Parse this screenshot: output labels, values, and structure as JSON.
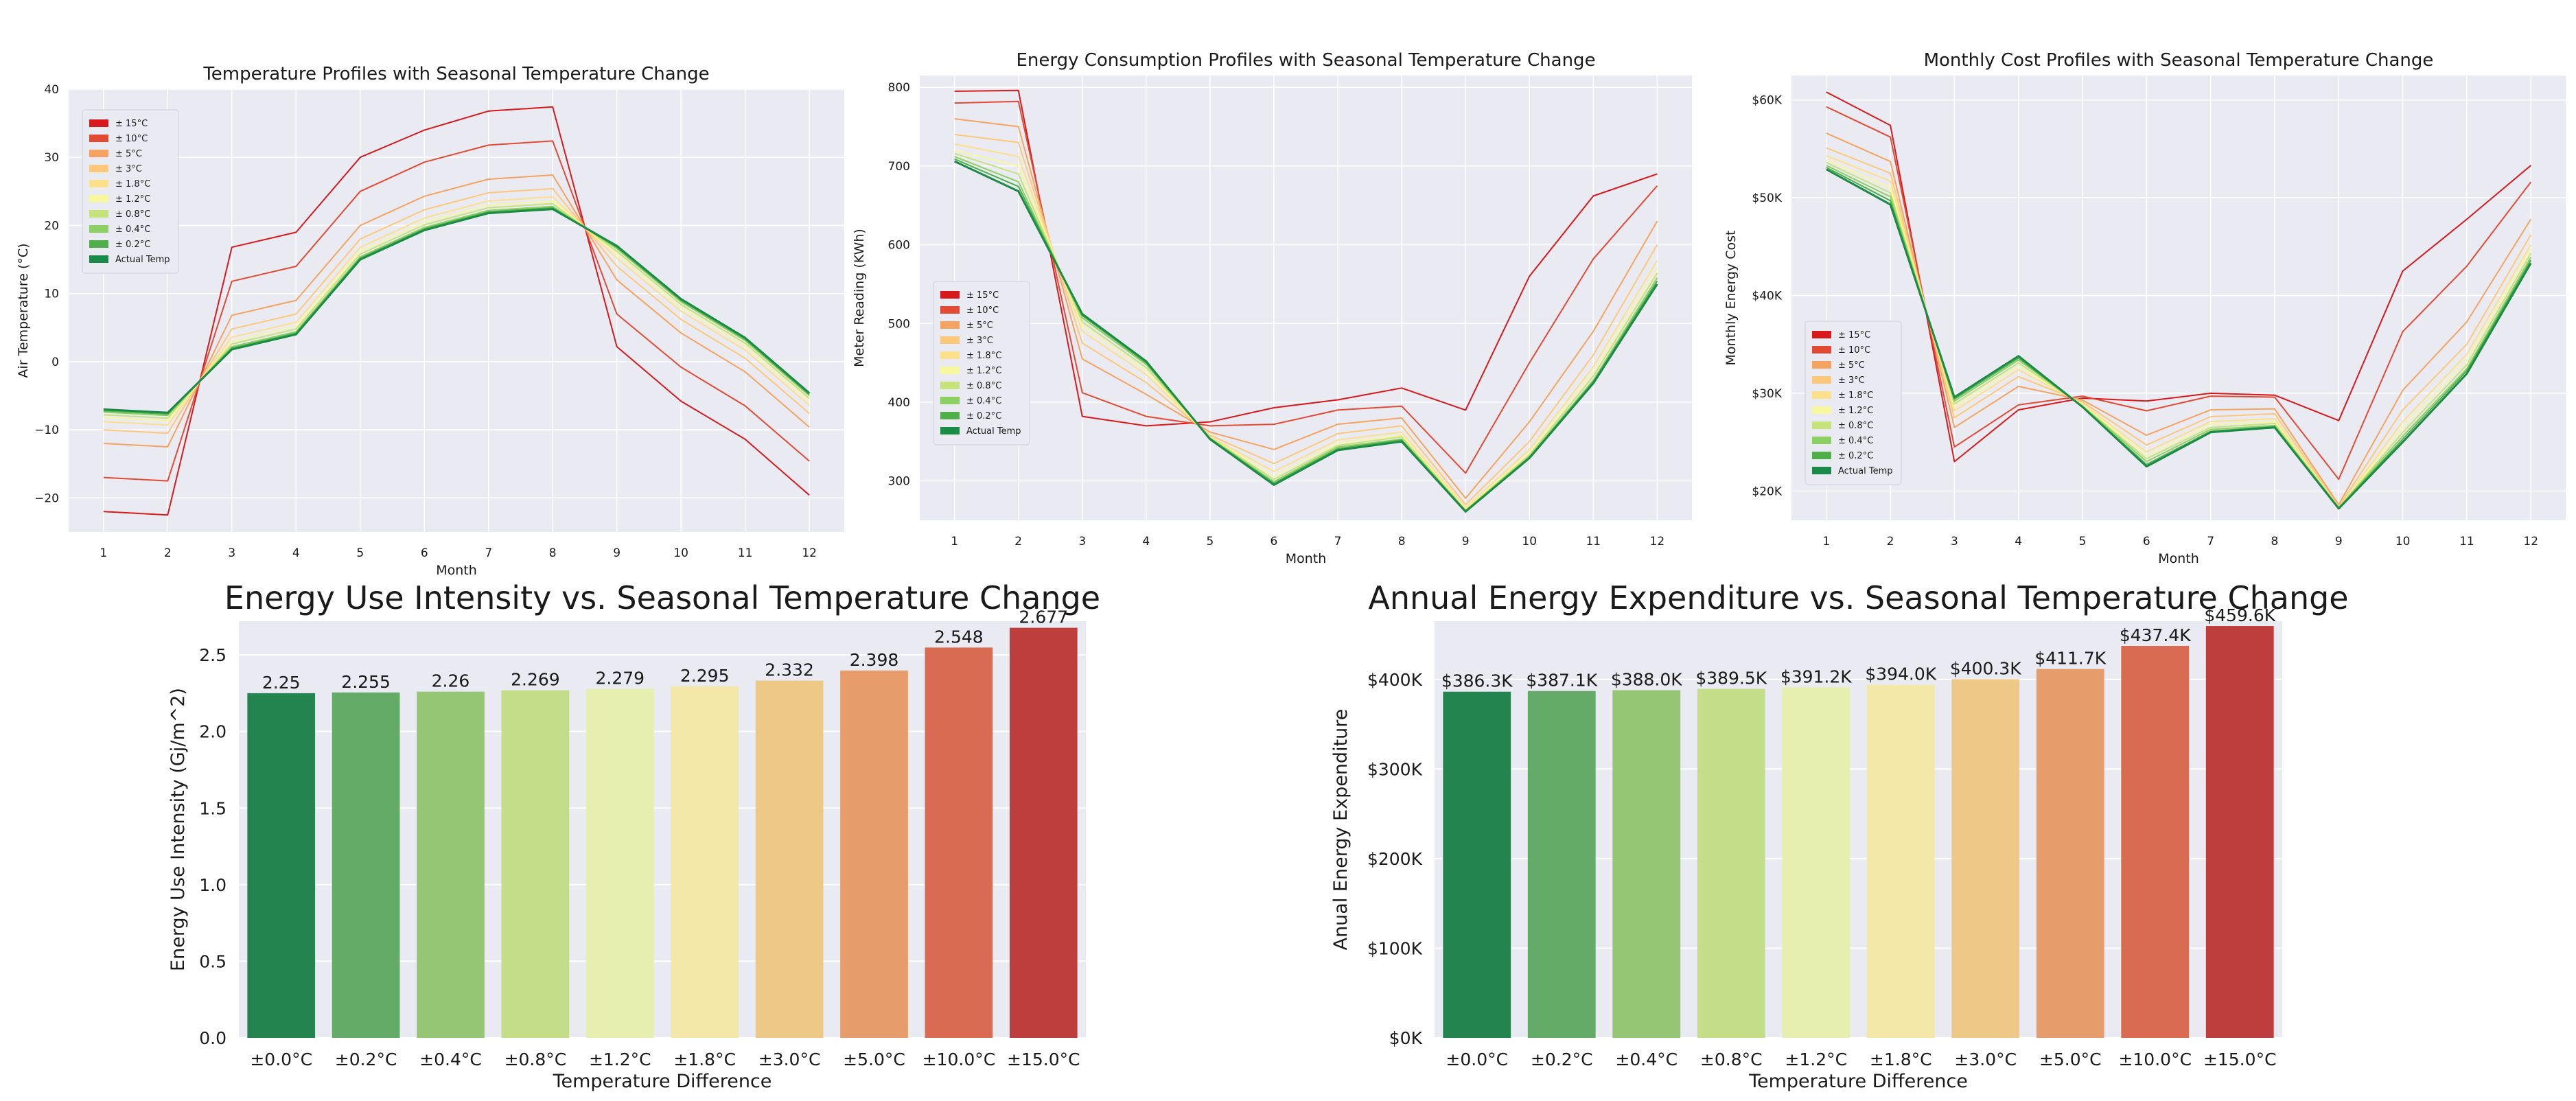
{
  "chart_data": [
    {
      "type": "line",
      "title": "Temperature Profiles with Seasonal Temperature Change",
      "xlabel": "Month",
      "ylabel": "Air Temperature (°C)",
      "x": [
        1,
        2,
        3,
        4,
        5,
        6,
        7,
        8,
        9,
        10,
        11,
        12
      ],
      "xticks": [
        "1",
        "2",
        "3",
        "4",
        "5",
        "6",
        "7",
        "8",
        "9",
        "10",
        "11",
        "12"
      ],
      "ylim": [
        -25,
        40
      ],
      "yticks": [
        -20,
        -10,
        0,
        10,
        20,
        30,
        40
      ],
      "ytick_labels": [
        "−20",
        "−10",
        "0",
        "10",
        "20",
        "30",
        "40"
      ],
      "grid": true,
      "legend_position": "upper-left",
      "series": [
        {
          "name": "± 15°C",
          "color": "#d7191c",
          "values": [
            -22,
            -22.5,
            16.8,
            19,
            30,
            34,
            36.8,
            37.4,
            2.2,
            -5.8,
            -11.4,
            -19.6
          ]
        },
        {
          "name": "± 10°C",
          "color": "#e34a33",
          "values": [
            -17,
            -17.5,
            11.8,
            14,
            25,
            29.3,
            31.8,
            32.4,
            7,
            -0.8,
            -6.5,
            -14.6
          ]
        },
        {
          "name": "± 5°C",
          "color": "#f4a460",
          "values": [
            -12,
            -12.5,
            6.8,
            9,
            20,
            24.3,
            26.8,
            27.4,
            12,
            4.2,
            -1.5,
            -9.6
          ]
        },
        {
          "name": "± 3°C",
          "color": "#fdc87a",
          "values": [
            -10,
            -10.5,
            4.8,
            7,
            18,
            22.3,
            24.8,
            25.4,
            14,
            6.2,
            0.5,
            -7.6
          ]
        },
        {
          "name": "± 1.8°C",
          "color": "#fee08b",
          "values": [
            -8.8,
            -9.3,
            3.6,
            5.8,
            16.8,
            21.1,
            23.6,
            24.2,
            15.2,
            7.4,
            1.7,
            -6.4
          ]
        },
        {
          "name": "± 1.2°C",
          "color": "#f7f7a0",
          "values": [
            -8.2,
            -8.7,
            3,
            5.2,
            16.2,
            20.5,
            23,
            23.6,
            15.8,
            8,
            2.3,
            -5.8
          ]
        },
        {
          "name": "± 0.8°C",
          "color": "#c6e27a",
          "values": [
            -7.8,
            -8.3,
            2.6,
            4.8,
            15.8,
            20.1,
            22.6,
            23.2,
            16.2,
            8.4,
            2.7,
            -5.4
          ]
        },
        {
          "name": "± 0.4°C",
          "color": "#8ccf63",
          "values": [
            -7.4,
            -7.9,
            2.2,
            4.4,
            15.4,
            19.7,
            22.2,
            22.8,
            16.6,
            8.8,
            3.1,
            -5
          ]
        },
        {
          "name": "± 0.2°C",
          "color": "#4fb04a",
          "values": [
            -7.2,
            -7.7,
            2,
            4.2,
            15.2,
            19.5,
            22,
            22.6,
            16.8,
            9,
            3.3,
            -4.8
          ]
        },
        {
          "name": "Actual Temp",
          "color": "#1a8a47",
          "values": [
            -7,
            -7.5,
            1.8,
            4,
            15,
            19.3,
            21.8,
            22.4,
            17,
            9.2,
            3.5,
            -4.6
          ]
        }
      ]
    },
    {
      "type": "line",
      "title": "Energy Consumption Profiles with Seasonal Temperature Change",
      "xlabel": "Month",
      "ylabel": "Meter Reading (KWh)",
      "x": [
        1,
        2,
        3,
        4,
        5,
        6,
        7,
        8,
        9,
        10,
        11,
        12
      ],
      "xticks": [
        "1",
        "2",
        "3",
        "4",
        "5",
        "6",
        "7",
        "8",
        "9",
        "10",
        "11",
        "12"
      ],
      "ylim": [
        250,
        815
      ],
      "yticks": [
        300,
        400,
        500,
        600,
        700,
        800
      ],
      "ytick_labels": [
        "300",
        "400",
        "500",
        "600",
        "700",
        "800"
      ],
      "grid": true,
      "legend_position": "center-left",
      "series": [
        {
          "name": "± 15°C",
          "color": "#d7191c",
          "values": [
            795,
            796,
            382,
            370,
            375,
            393,
            403,
            418,
            390,
            560,
            662,
            690
          ]
        },
        {
          "name": "± 10°C",
          "color": "#e34a33",
          "values": [
            780,
            782,
            412,
            382,
            370,
            372,
            390,
            395,
            310,
            450,
            582,
            675
          ]
        },
        {
          "name": "± 5°C",
          "color": "#f4a460",
          "values": [
            760,
            750,
            455,
            410,
            362,
            340,
            372,
            380,
            278,
            375,
            490,
            630
          ]
        },
        {
          "name": "± 3°C",
          "color": "#fdc87a",
          "values": [
            740,
            730,
            475,
            425,
            358,
            322,
            360,
            370,
            270,
            350,
            460,
            600
          ]
        },
        {
          "name": "± 1.8°C",
          "color": "#fee08b",
          "values": [
            728,
            712,
            490,
            435,
            356,
            312,
            352,
            362,
            266,
            340,
            445,
            580
          ]
        },
        {
          "name": "± 1.2°C",
          "color": "#f7f7a0",
          "values": [
            720,
            700,
            497,
            440,
            355,
            306,
            348,
            358,
            264,
            336,
            438,
            570
          ]
        },
        {
          "name": "± 0.8°C",
          "color": "#c6e27a",
          "values": [
            716,
            690,
            502,
            444,
            355,
            302,
            345,
            356,
            263,
            333,
            433,
            564
          ]
        },
        {
          "name": "± 0.4°C",
          "color": "#8ccf63",
          "values": [
            712,
            680,
            507,
            448,
            354,
            299,
            343,
            353,
            262,
            331,
            428,
            558
          ]
        },
        {
          "name": "± 0.2°C",
          "color": "#4fb04a",
          "values": [
            709,
            674,
            510,
            450,
            354,
            297,
            341,
            352,
            262,
            330,
            426,
            554
          ]
        },
        {
          "name": "Actual Temp",
          "color": "#1a8a47",
          "values": [
            706,
            668,
            512,
            452,
            353,
            295,
            339,
            350,
            261,
            329,
            424,
            550
          ]
        }
      ]
    },
    {
      "type": "line",
      "title": "Monthly Cost Profiles with Seasonal Temperature Change",
      "xlabel": "Month",
      "ylabel": "Monthly Energy Cost",
      "x": [
        1,
        2,
        3,
        4,
        5,
        6,
        7,
        8,
        9,
        10,
        11,
        12
      ],
      "xticks": [
        "1",
        "2",
        "3",
        "4",
        "5",
        "6",
        "7",
        "8",
        "9",
        "10",
        "11",
        "12"
      ],
      "ylim": [
        17000,
        62500
      ],
      "yticks": [
        20000,
        30000,
        40000,
        50000,
        60000
      ],
      "ytick_labels": [
        "$20K",
        "$30K",
        "$40K",
        "$50K",
        "$60K"
      ],
      "grid": true,
      "legend_position": "center-left",
      "series": [
        {
          "name": "± 15°C",
          "color": "#d7191c",
          "values": [
            60800,
            57400,
            23000,
            28300,
            29500,
            29200,
            30000,
            29800,
            27200,
            42500,
            47800,
            53300
          ]
        },
        {
          "name": "± 10°C",
          "color": "#e34a33",
          "values": [
            59300,
            56200,
            24500,
            28800,
            29700,
            28200,
            29700,
            29600,
            21200,
            36300,
            43000,
            51600
          ]
        },
        {
          "name": "± 5°C",
          "color": "#f4a460",
          "values": [
            56600,
            53700,
            26500,
            30700,
            29300,
            25700,
            28300,
            28400,
            18600,
            30300,
            37300,
            47800
          ]
        },
        {
          "name": "± 3°C",
          "color": "#fdc87a",
          "values": [
            55100,
            52500,
            27500,
            31700,
            29100,
            24700,
            27600,
            27900,
            18400,
            28300,
            35000,
            46200
          ]
        },
        {
          "name": "± 1.8°C",
          "color": "#fee08b",
          "values": [
            54300,
            51700,
            28200,
            32400,
            28900,
            24000,
            27100,
            27400,
            18300,
            27100,
            34000,
            45200
          ]
        },
        {
          "name": "± 1.2°C",
          "color": "#f7f7a0",
          "values": [
            53900,
            51000,
            28600,
            32800,
            28800,
            23600,
            26800,
            27100,
            18300,
            26500,
            33400,
            44700
          ]
        },
        {
          "name": "± 0.8°C",
          "color": "#c6e27a",
          "values": [
            53600,
            50500,
            28900,
            33100,
            28700,
            23300,
            26500,
            26900,
            18300,
            26000,
            32900,
            44300
          ]
        },
        {
          "name": "± 0.4°C",
          "color": "#8ccf63",
          "values": [
            53300,
            50100,
            29200,
            33400,
            28700,
            23000,
            26300,
            26700,
            18300,
            25600,
            32500,
            43900
          ]
        },
        {
          "name": "± 0.2°C",
          "color": "#4fb04a",
          "values": [
            53100,
            49700,
            29400,
            33600,
            28600,
            22700,
            26100,
            26600,
            18200,
            25300,
            32300,
            43600
          ]
        },
        {
          "name": "Actual Temp",
          "color": "#1a8a47",
          "values": [
            52900,
            49300,
            29600,
            33800,
            28600,
            22500,
            26000,
            26500,
            18200,
            25000,
            32000,
            43300
          ]
        }
      ]
    },
    {
      "type": "bar",
      "title": "Energy Use Intensity vs. Seasonal Temperature Change",
      "xlabel": "Temperature Difference",
      "ylabel": "Energy Use Intensity (Gj/m^2)",
      "categories": [
        "±0.0°C",
        "±0.2°C",
        "±0.4°C",
        "±0.8°C",
        "±1.2°C",
        "±1.8°C",
        "±3.0°C",
        "±5.0°C",
        "±10.0°C",
        "±15.0°C"
      ],
      "values": [
        2.25,
        2.255,
        2.26,
        2.269,
        2.279,
        2.295,
        2.332,
        2.398,
        2.548,
        2.677
      ],
      "value_labels": [
        "2.25",
        "2.255",
        "2.26",
        "2.269",
        "2.279",
        "2.295",
        "2.332",
        "2.398",
        "2.548",
        "2.677"
      ],
      "colors": [
        "#24844f",
        "#63ab66",
        "#94c673",
        "#c3dd88",
        "#e6efaf",
        "#f4e8a8",
        "#edc887",
        "#e69c6b",
        "#d96b53",
        "#be3d3d"
      ],
      "ylim": [
        0,
        2.72
      ],
      "yticks": [
        0,
        0.5,
        1,
        1.5,
        2,
        2.5
      ],
      "ytick_labels": [
        "0.0",
        "0.5",
        "1.0",
        "1.5",
        "2.0",
        "2.5"
      ],
      "grid": true
    },
    {
      "type": "bar",
      "title": "Annual Energy Expenditure vs. Seasonal Temperature Change",
      "xlabel": "Temperature Difference",
      "ylabel": "Anual Energy Expenditure",
      "categories": [
        "±0.0°C",
        "±0.2°C",
        "±0.4°C",
        "±0.8°C",
        "±1.2°C",
        "±1.8°C",
        "±3.0°C",
        "±5.0°C",
        "±10.0°C",
        "±15.0°C"
      ],
      "values": [
        386300,
        387100,
        388000,
        389500,
        391200,
        394000,
        400300,
        411700,
        437400,
        459600
      ],
      "value_labels": [
        "$386.3K",
        "$387.1K",
        "$388.0K",
        "$389.5K",
        "$391.2K",
        "$394.0K",
        "$400.3K",
        "$411.7K",
        "$437.4K",
        "$459.6K"
      ],
      "colors": [
        "#24844f",
        "#63ab66",
        "#94c673",
        "#c3dd88",
        "#e6efaf",
        "#f4e8a8",
        "#edc887",
        "#e69c6b",
        "#d96b53",
        "#be3d3d"
      ],
      "ylim": [
        0,
        465000
      ],
      "yticks": [
        0,
        100000,
        200000,
        300000,
        400000
      ],
      "ytick_labels": [
        "$0K",
        "$100K",
        "$200K",
        "$300K",
        "$400K"
      ],
      "grid": true
    }
  ]
}
